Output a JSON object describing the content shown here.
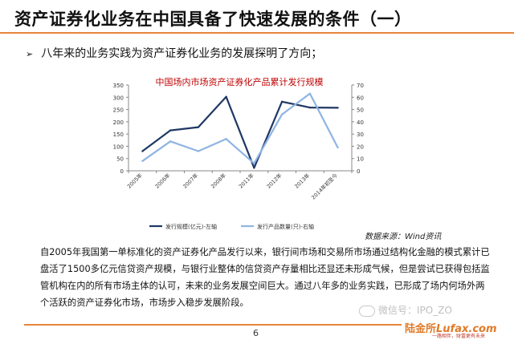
{
  "slide": {
    "title": "资产证券化业务在中国具备了快速发展的条件（一）",
    "bullet": "八年来的业务实践为资产证券化业务的发展探明了方向；",
    "source": "数据来源：Wind资讯",
    "paragraph": "自2005年我国第一单标准化的资产证券化产品发行以来，银行间市场和交易所市场通过结构化金融的模式累计已盘活了1500多亿元信贷资产规模，与银行业整体的信贷资产存量相比还显还未形成气候，但是尝试已获得包括监管机构在内的所有市场主体的认可，未来的业务发展空间巨大。通过八年多的业务实践，已形成了场内何场外两个活跃的资产证券化市场，市场步入稳步发展阶段。",
    "page_number": "6",
    "watermark": "微信号：IPO_ZO",
    "brand_cn": "陆金所",
    "brand_en": "Lufax",
    "brand_suffix": ".com",
    "slogan": "一路相伴，财富更有未来"
  },
  "colors": {
    "accent_orange": "#e8853a",
    "title_red": "#c00000",
    "series_left": "#1f3864",
    "series_right": "#8eb4e3"
  },
  "chart_data": {
    "type": "line",
    "title": "中国场内市场资产证券化产品累计发行规模",
    "categories": [
      "2005年",
      "2006年",
      "2007年",
      "2008年",
      "2011年",
      "2012年",
      "2013年",
      "2014年初至今"
    ],
    "series": [
      {
        "name": "发行规模(亿元)-左轴",
        "axis": "left",
        "values": [
          80,
          165,
          178,
          302,
          12,
          282,
          258,
          257
        ]
      },
      {
        "name": "发行产品数量(只)-右轴",
        "axis": "right",
        "values": [
          8,
          24,
          16,
          26,
          6,
          46,
          63,
          19
        ]
      }
    ],
    "y_left": {
      "min": 0,
      "max": 350,
      "ticks": [
        0,
        50,
        100,
        150,
        200,
        250,
        300,
        350
      ]
    },
    "y_right": {
      "min": 0,
      "max": 70,
      "ticks": [
        0,
        10,
        20,
        30,
        40,
        50,
        60,
        70
      ]
    },
    "grid": false,
    "legend_position": "bottom"
  }
}
